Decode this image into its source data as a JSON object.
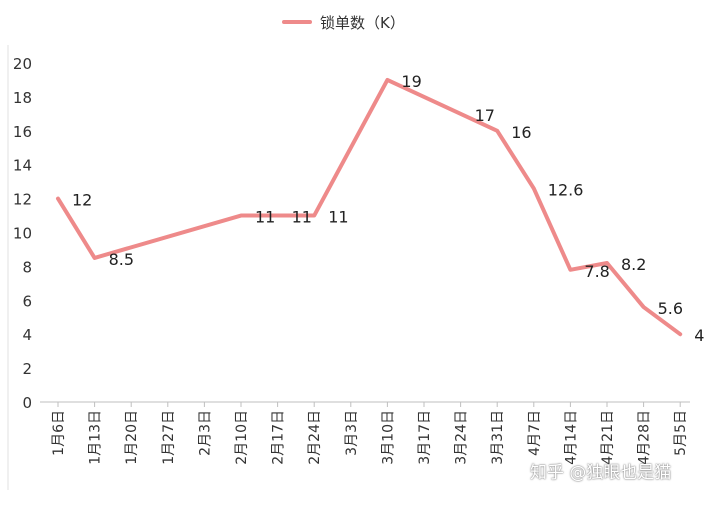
{
  "chart_data": {
    "type": "line",
    "title": "",
    "xlabel": "",
    "ylabel": "",
    "ylim": [
      0,
      20
    ],
    "yticks": [
      0,
      2,
      4,
      6,
      8,
      10,
      12,
      14,
      16,
      18,
      20
    ],
    "grid": false,
    "legend_position": "top-center",
    "categories": [
      "1月6日",
      "1月13日",
      "1月20日",
      "1月27日",
      "2月3日",
      "2月10日",
      "2月17日",
      "2月24日",
      "3月3日",
      "3月10日",
      "3月17日",
      "3月24日",
      "3月31日",
      "4月7日",
      "4月14日",
      "4月21日",
      "4月28日",
      "5月5日"
    ],
    "series": [
      {
        "name": "锁单数（K）",
        "color": "#ee8a8a",
        "points": [
          {
            "x": "1月6日",
            "y": 12
          },
          {
            "x": "1月13日",
            "y": 8.5
          },
          {
            "x": "2月10日",
            "y": 11
          },
          {
            "x": "2月24日",
            "y": 11
          },
          {
            "x": "3月10日",
            "y": 19
          },
          {
            "x": "3月31日",
            "y": 16
          },
          {
            "x": "4月7日",
            "y": 12.6
          },
          {
            "x": "4月14日",
            "y": 7.8
          },
          {
            "x": "4月21日",
            "y": 8.2
          },
          {
            "x": "4月28日",
            "y": 5.6
          },
          {
            "x": "5月5日",
            "y": 4
          }
        ],
        "data_labels": [
          {
            "x": "1月6日",
            "text": "12"
          },
          {
            "x": "1月13日",
            "text": "8.5"
          },
          {
            "x": "2月10日",
            "text": "11"
          },
          {
            "x": "2月17日",
            "text": "11"
          },
          {
            "x": "2月24日",
            "text": "11"
          },
          {
            "x": "3月10日",
            "text": "19"
          },
          {
            "x": "3月24日",
            "text": "17"
          },
          {
            "x": "3月31日",
            "text": "16"
          },
          {
            "x": "4月7日",
            "text": "12.6"
          },
          {
            "x": "4月14日",
            "text": "7.8"
          },
          {
            "x": "4月21日",
            "text": "8.2"
          },
          {
            "x": "4月28日",
            "text": "5.6"
          },
          {
            "x": "5月5日",
            "text": "4"
          }
        ]
      }
    ]
  },
  "watermark": "知乎 @独眼也是猫"
}
